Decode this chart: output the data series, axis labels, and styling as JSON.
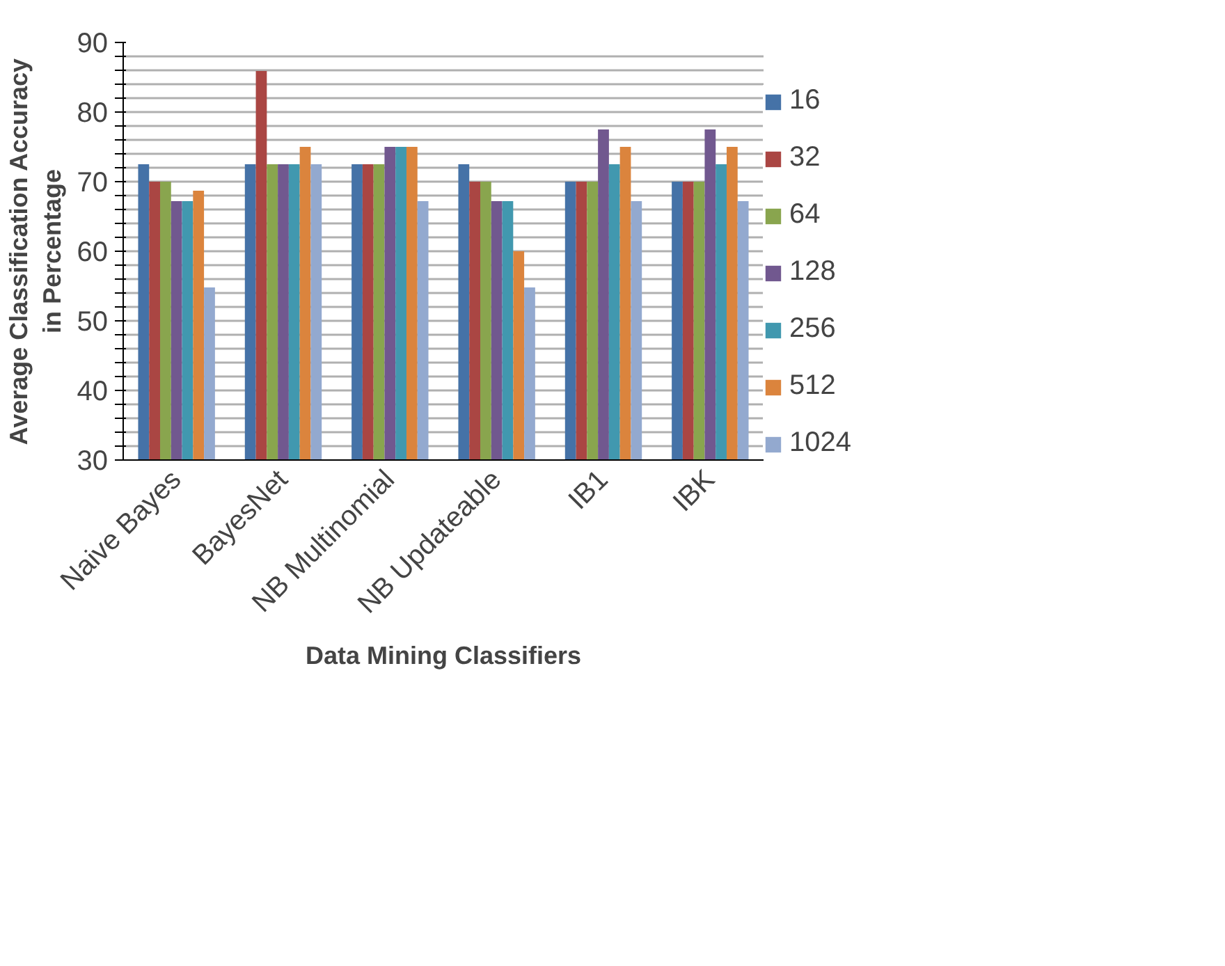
{
  "chart_data": {
    "type": "bar",
    "xlabel": "Data Mining Classifiers",
    "ylabel": "Average Classification Accuracy\nin Percentage",
    "categories": [
      "Naive Bayes",
      "BayesNet",
      "NB Multinomial",
      "NB Updateable",
      "IB1",
      "IBK"
    ],
    "series": [
      {
        "name": "16",
        "color": "#4572a7",
        "values": [
          72.5,
          72.5,
          72.5,
          72.5,
          70,
          70
        ]
      },
      {
        "name": "32",
        "color": "#aa4643",
        "values": [
          70,
          85.9,
          72.5,
          70,
          70,
          70
        ]
      },
      {
        "name": "64",
        "color": "#89a54e",
        "values": [
          70,
          72.5,
          72.5,
          70,
          70,
          70
        ]
      },
      {
        "name": "128",
        "color": "#71588f",
        "values": [
          67.2,
          72.5,
          75,
          67.2,
          77.5,
          77.5
        ]
      },
      {
        "name": "256",
        "color": "#4198af",
        "values": [
          67.2,
          72.5,
          75,
          67.2,
          72.5,
          72.5
        ]
      },
      {
        "name": "512",
        "color": "#db843d",
        "values": [
          68.7,
          75,
          75,
          60,
          75,
          75
        ]
      },
      {
        "name": "1024",
        "color": "#93a9cf",
        "values": [
          54.8,
          72.5,
          67.2,
          54.8,
          67.2,
          67.2
        ]
      }
    ],
    "ylim": [
      30,
      90
    ],
    "yticks": [
      30,
      {
        "value": 32,
        "label": null
      },
      {
        "value": 34,
        "label": null
      },
      {
        "value": 36,
        "label": null
      },
      {
        "value": 38,
        "label": null
      },
      40,
      {
        "value": 42,
        "label": null
      },
      {
        "value": 44,
        "label": null
      },
      {
        "value": 46,
        "label": null
      },
      {
        "value": 48,
        "label": null
      },
      50,
      {
        "value": 52,
        "label": null
      },
      {
        "value": 54,
        "label": null
      },
      {
        "value": 56,
        "label": null
      },
      {
        "value": 58,
        "label": null
      },
      60,
      {
        "value": 62,
        "label": null
      },
      {
        "value": 64,
        "label": null
      },
      {
        "value": 66,
        "label": null
      },
      {
        "value": 68,
        "label": null
      },
      70,
      {
        "value": 72,
        "label": null
      },
      {
        "value": 74,
        "label": null
      },
      {
        "value": 76,
        "label": null
      },
      {
        "value": 78,
        "label": null
      },
      80,
      {
        "value": 82,
        "label": null
      },
      {
        "value": 84,
        "label": null
      },
      {
        "value": 86,
        "label": null
      },
      {
        "value": 88,
        "label": null
      },
      90
    ],
    "grid": "y",
    "legend": "right"
  }
}
